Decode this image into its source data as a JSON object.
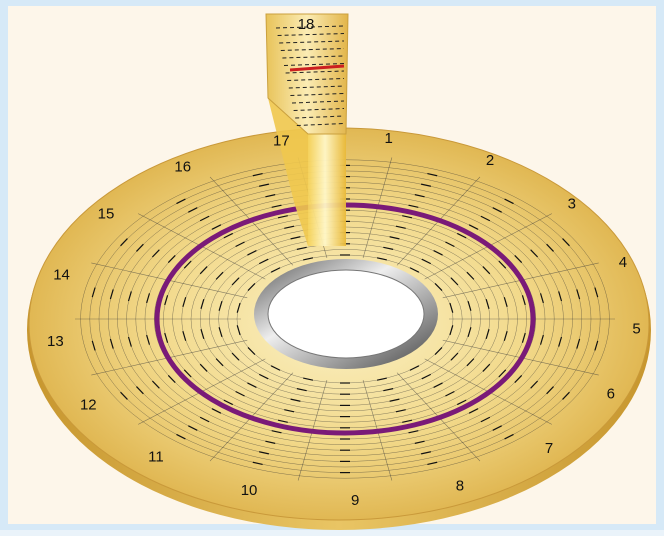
{
  "figure": {
    "sector_labels": [
      "1",
      "2",
      "3",
      "4",
      "5",
      "6",
      "7",
      "8",
      "9",
      "10",
      "11",
      "12",
      "13",
      "14",
      "15",
      "16",
      "17",
      "18"
    ],
    "colors": {
      "background": "#fdf6ea",
      "border": "#d6e9f7",
      "platter_edge": "#e4b84c",
      "platter_center": "#fbf1c6",
      "track_lines": "#2b2b2b",
      "highlight_track": "#7a1a78",
      "spindle_ring": "#8c8c8c",
      "zoom_sector_highlight": "#cc1f1f"
    }
  }
}
